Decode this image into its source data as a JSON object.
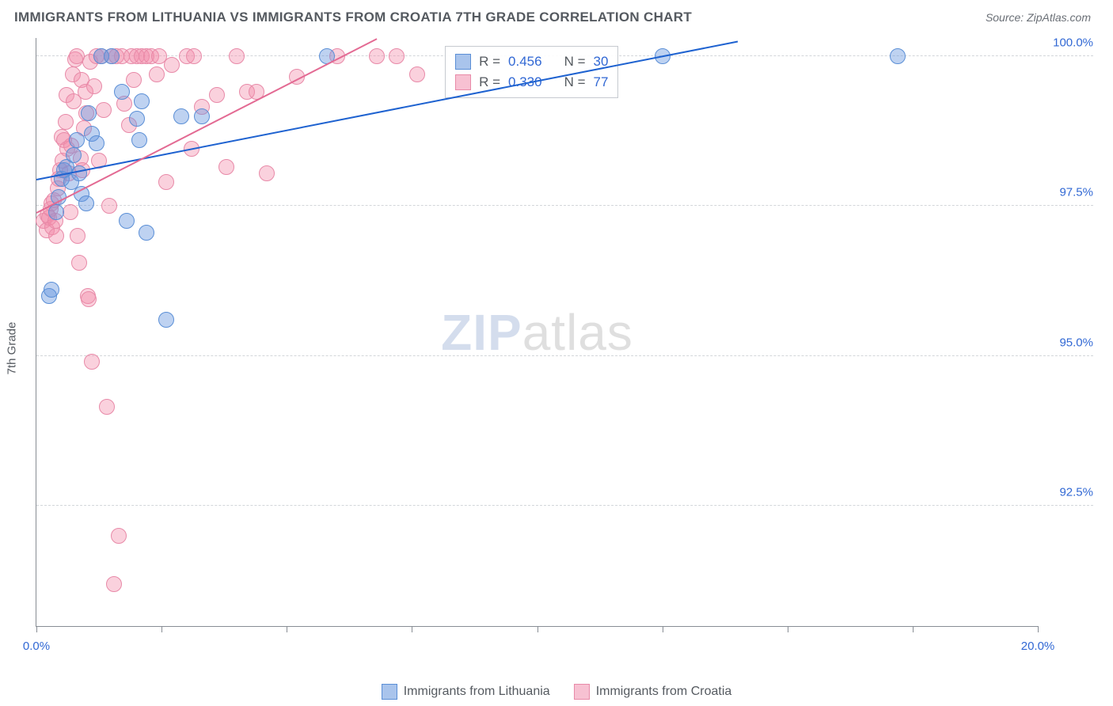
{
  "header": {
    "title": "IMMIGRANTS FROM LITHUANIA VS IMMIGRANTS FROM CROATIA 7TH GRADE CORRELATION CHART",
    "source": "Source: ZipAtlas.com"
  },
  "chart": {
    "type": "scatter",
    "y_label": "7th Grade",
    "background_color": "#ffffff",
    "grid_color": "#d3d6da",
    "axis_color": "#888d94",
    "xlim": [
      0.0,
      20.0
    ],
    "ylim": [
      90.5,
      100.3
    ],
    "xticks": [
      0.0,
      2.5,
      5.0,
      7.5,
      10.0,
      12.5,
      15.0,
      17.5,
      20.0
    ],
    "xtick_labels_shown": {
      "0": "0.0%",
      "8": "20.0%"
    },
    "yticks": [
      92.5,
      95.0,
      97.5,
      100.0
    ],
    "ytick_labels": [
      "92.5%",
      "95.0%",
      "97.5%",
      "100.0%"
    ],
    "watermark": {
      "part1": "ZIP",
      "part2": "atlas"
    },
    "series": [
      {
        "name": "Immigrants from Lithuania",
        "label": "Immigrants from Lithuania",
        "fill": "rgba(99,148,222,0.42)",
        "stroke": "#5b8fd6",
        "swatch_fill": "#a9c4ec",
        "swatch_stroke": "#5b8fd6",
        "marker_radius": 10,
        "points": [
          [
            0.25,
            96.0
          ],
          [
            0.3,
            96.1
          ],
          [
            0.4,
            97.4
          ],
          [
            0.45,
            97.65
          ],
          [
            0.5,
            97.95
          ],
          [
            0.55,
            98.1
          ],
          [
            0.6,
            98.15
          ],
          [
            0.7,
            97.9
          ],
          [
            0.75,
            98.35
          ],
          [
            0.8,
            98.6
          ],
          [
            0.85,
            98.05
          ],
          [
            0.9,
            97.7
          ],
          [
            1.0,
            97.55
          ],
          [
            1.05,
            99.05
          ],
          [
            1.1,
            98.7
          ],
          [
            1.2,
            98.55
          ],
          [
            1.3,
            100.0
          ],
          [
            1.5,
            100.0
          ],
          [
            1.7,
            99.4
          ],
          [
            1.8,
            97.25
          ],
          [
            2.0,
            98.95
          ],
          [
            2.05,
            98.6
          ],
          [
            2.1,
            99.25
          ],
          [
            2.2,
            97.05
          ],
          [
            2.6,
            95.6
          ],
          [
            2.9,
            99.0
          ],
          [
            3.3,
            99.0
          ],
          [
            5.8,
            100.0
          ],
          [
            12.5,
            100.0
          ],
          [
            17.2,
            100.0
          ]
        ],
        "trend": {
          "x1": 0.0,
          "y1": 97.95,
          "x2": 14.0,
          "y2": 100.25,
          "color": "#1e62d0",
          "width": 2
        }
      },
      {
        "name": "Immigrants from Croatia",
        "label": "Immigrants from Croatia",
        "fill": "rgba(243,140,170,0.40)",
        "stroke": "#e88aa8",
        "swatch_fill": "#f7c1d2",
        "swatch_stroke": "#e88aa8",
        "marker_radius": 10,
        "points": [
          [
            0.15,
            97.25
          ],
          [
            0.2,
            97.1
          ],
          [
            0.22,
            97.35
          ],
          [
            0.25,
            97.3
          ],
          [
            0.28,
            97.45
          ],
          [
            0.3,
            97.55
          ],
          [
            0.32,
            97.15
          ],
          [
            0.35,
            97.6
          ],
          [
            0.38,
            97.25
          ],
          [
            0.4,
            97.0
          ],
          [
            0.42,
            97.8
          ],
          [
            0.45,
            97.95
          ],
          [
            0.48,
            98.1
          ],
          [
            0.5,
            98.65
          ],
          [
            0.52,
            98.25
          ],
          [
            0.55,
            98.6
          ],
          [
            0.58,
            98.9
          ],
          [
            0.6,
            99.35
          ],
          [
            0.62,
            98.45
          ],
          [
            0.65,
            98.05
          ],
          [
            0.68,
            97.4
          ],
          [
            0.7,
            98.5
          ],
          [
            0.72,
            99.7
          ],
          [
            0.75,
            99.25
          ],
          [
            0.78,
            99.95
          ],
          [
            0.8,
            100.0
          ],
          [
            0.82,
            97.0
          ],
          [
            0.85,
            96.55
          ],
          [
            0.88,
            98.3
          ],
          [
            0.9,
            99.6
          ],
          [
            0.92,
            98.1
          ],
          [
            0.95,
            98.8
          ],
          [
            0.98,
            99.4
          ],
          [
            1.0,
            99.05
          ],
          [
            1.02,
            96.0
          ],
          [
            1.05,
            95.95
          ],
          [
            1.08,
            99.9
          ],
          [
            1.1,
            94.9
          ],
          [
            1.15,
            99.5
          ],
          [
            1.2,
            100.0
          ],
          [
            1.25,
            98.25
          ],
          [
            1.3,
            100.0
          ],
          [
            1.35,
            99.1
          ],
          [
            1.4,
            94.15
          ],
          [
            1.45,
            97.5
          ],
          [
            1.5,
            100.0
          ],
          [
            1.55,
            91.2
          ],
          [
            1.6,
            100.0
          ],
          [
            1.65,
            92.0
          ],
          [
            1.7,
            100.0
          ],
          [
            1.75,
            99.2
          ],
          [
            1.85,
            98.85
          ],
          [
            1.9,
            100.0
          ],
          [
            1.95,
            99.6
          ],
          [
            2.0,
            100.0
          ],
          [
            2.1,
            100.0
          ],
          [
            2.2,
            100.0
          ],
          [
            2.3,
            100.0
          ],
          [
            2.4,
            99.7
          ],
          [
            2.45,
            100.0
          ],
          [
            2.6,
            97.9
          ],
          [
            2.7,
            99.85
          ],
          [
            3.0,
            100.0
          ],
          [
            3.1,
            98.45
          ],
          [
            3.15,
            100.0
          ],
          [
            3.3,
            99.15
          ],
          [
            3.6,
            99.35
          ],
          [
            3.8,
            98.15
          ],
          [
            4.0,
            100.0
          ],
          [
            4.2,
            99.4
          ],
          [
            4.4,
            99.4
          ],
          [
            4.6,
            98.05
          ],
          [
            5.2,
            99.65
          ],
          [
            6.0,
            100.0
          ],
          [
            6.8,
            100.0
          ],
          [
            7.2,
            100.0
          ],
          [
            7.6,
            99.7
          ]
        ],
        "trend": {
          "x1": 0.0,
          "y1": 97.4,
          "x2": 6.8,
          "y2": 100.3,
          "color": "#e36a93",
          "width": 2
        }
      }
    ],
    "stats_box": {
      "left_pct": 40.8,
      "top_pct": 1.3,
      "rows": [
        {
          "swatch_fill": "#a9c4ec",
          "swatch_stroke": "#5b8fd6",
          "r_label": "R =",
          "r_val": "0.456",
          "n_label": "N =",
          "n_val": "30"
        },
        {
          "swatch_fill": "#f7c1d2",
          "swatch_stroke": "#e88aa8",
          "r_label": "R =",
          "r_val": "0.330",
          "n_label": "N =",
          "n_val": "77"
        }
      ]
    }
  },
  "legend": {
    "items": [
      {
        "swatch_fill": "#a9c4ec",
        "swatch_stroke": "#5b8fd6",
        "label": "Immigrants from Lithuania"
      },
      {
        "swatch_fill": "#f7c1d2",
        "swatch_stroke": "#e88aa8",
        "label": "Immigrants from Croatia"
      }
    ]
  }
}
